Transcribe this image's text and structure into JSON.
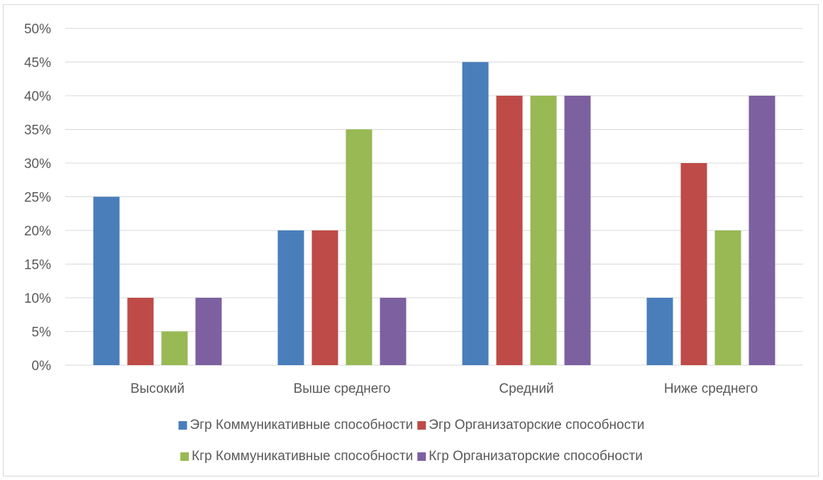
{
  "chart_data": {
    "type": "bar",
    "title": "",
    "xlabel": "",
    "ylabel": "",
    "categories": [
      "Высокий",
      "Выше среднего",
      "Средний",
      "Ниже среднего"
    ],
    "series": [
      {
        "name": "Эгр Коммуникативные способности",
        "color": "#4a7ebb",
        "values": [
          25,
          20,
          45,
          10
        ]
      },
      {
        "name": "Эгр Организаторские способности",
        "color": "#be4b48",
        "values": [
          10,
          20,
          40,
          30
        ]
      },
      {
        "name": "Кгр Коммуникативные способности",
        "color": "#98b954",
        "values": [
          5,
          35,
          40,
          20
        ]
      },
      {
        "name": "Кгр Организаторские способности",
        "color": "#7d60a0",
        "values": [
          10,
          10,
          40,
          40
        ]
      }
    ],
    "ylim": [
      0,
      50
    ],
    "yticks": [
      "0%",
      "5%",
      "10%",
      "15%",
      "20%",
      "25%",
      "30%",
      "35%",
      "40%",
      "45%",
      "50%"
    ],
    "grid": true,
    "legend_position": "bottom"
  }
}
